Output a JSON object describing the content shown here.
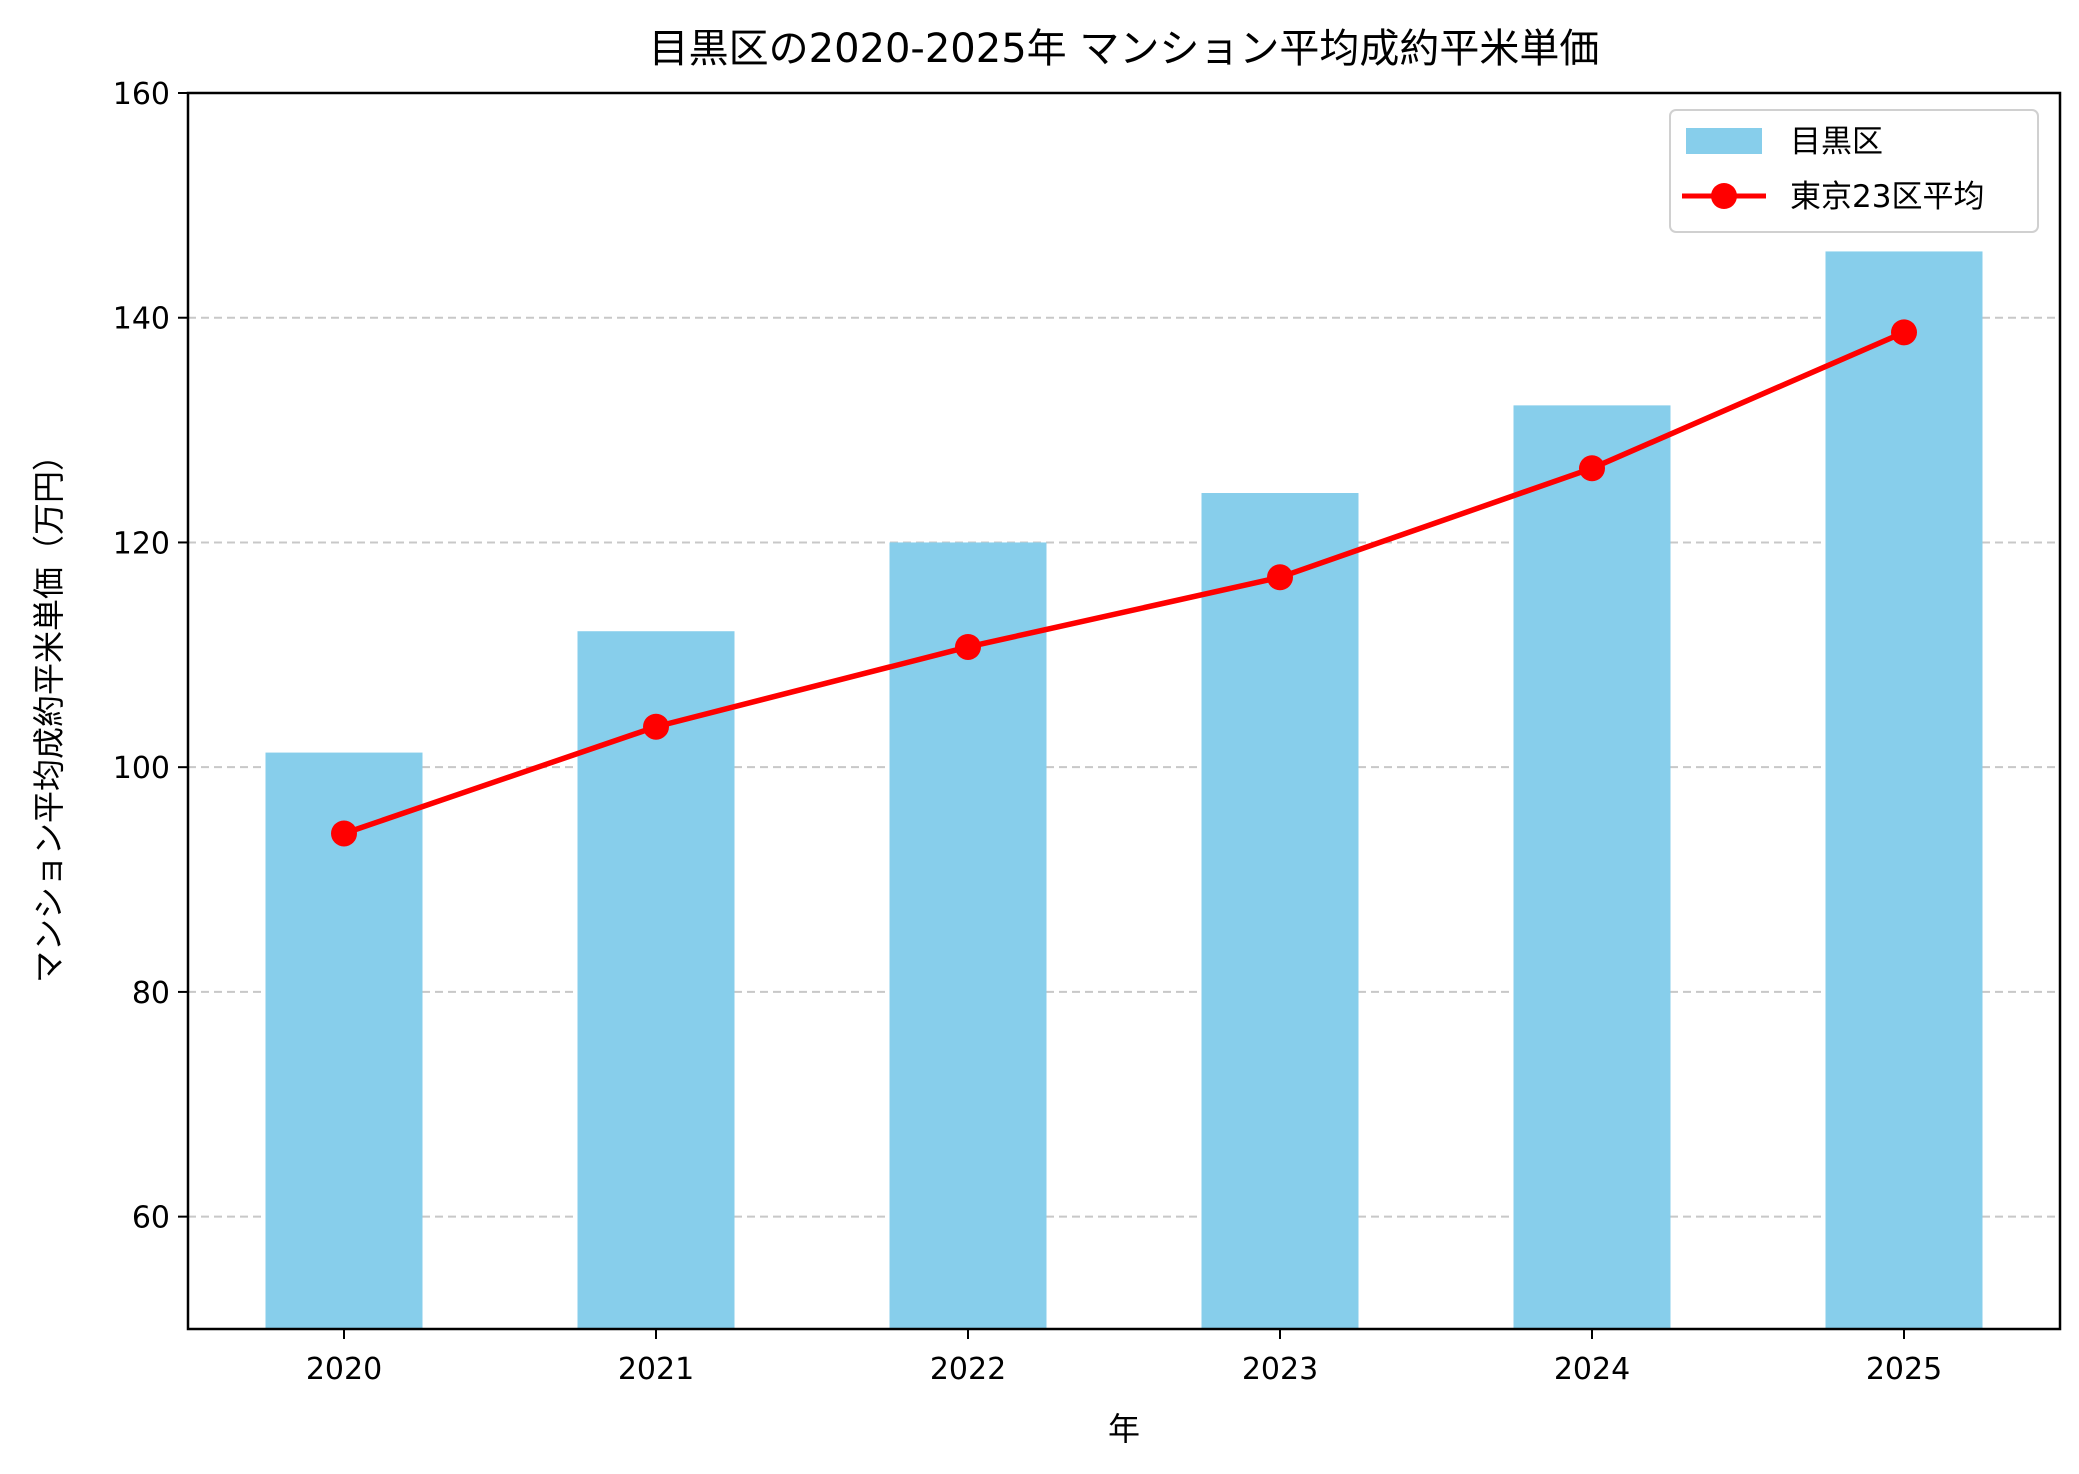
{
  "chart_data": {
    "type": "bar+line",
    "title": "目黒区の2020-2025年 マンション平均成約平米単価",
    "xlabel": "年",
    "ylabel": "マンション平均成約平米単価（万円）",
    "categories": [
      "2020",
      "2021",
      "2022",
      "2023",
      "2024",
      "2025"
    ],
    "ylim": [
      50,
      160
    ],
    "yticks": [
      60,
      80,
      100,
      120,
      140,
      160
    ],
    "grid": "y-dashed",
    "legend_position": "top-right",
    "series": [
      {
        "name": "目黒区",
        "type": "bar",
        "color": "#87CEEB",
        "values": [
          101.3,
          112.1,
          120.0,
          124.4,
          132.2,
          145.9
        ]
      },
      {
        "name": "東京23区平均",
        "type": "line",
        "color": "#FF0000",
        "marker": "circle",
        "values": [
          94.1,
          103.6,
          110.7,
          116.9,
          126.6,
          138.7
        ]
      }
    ]
  }
}
